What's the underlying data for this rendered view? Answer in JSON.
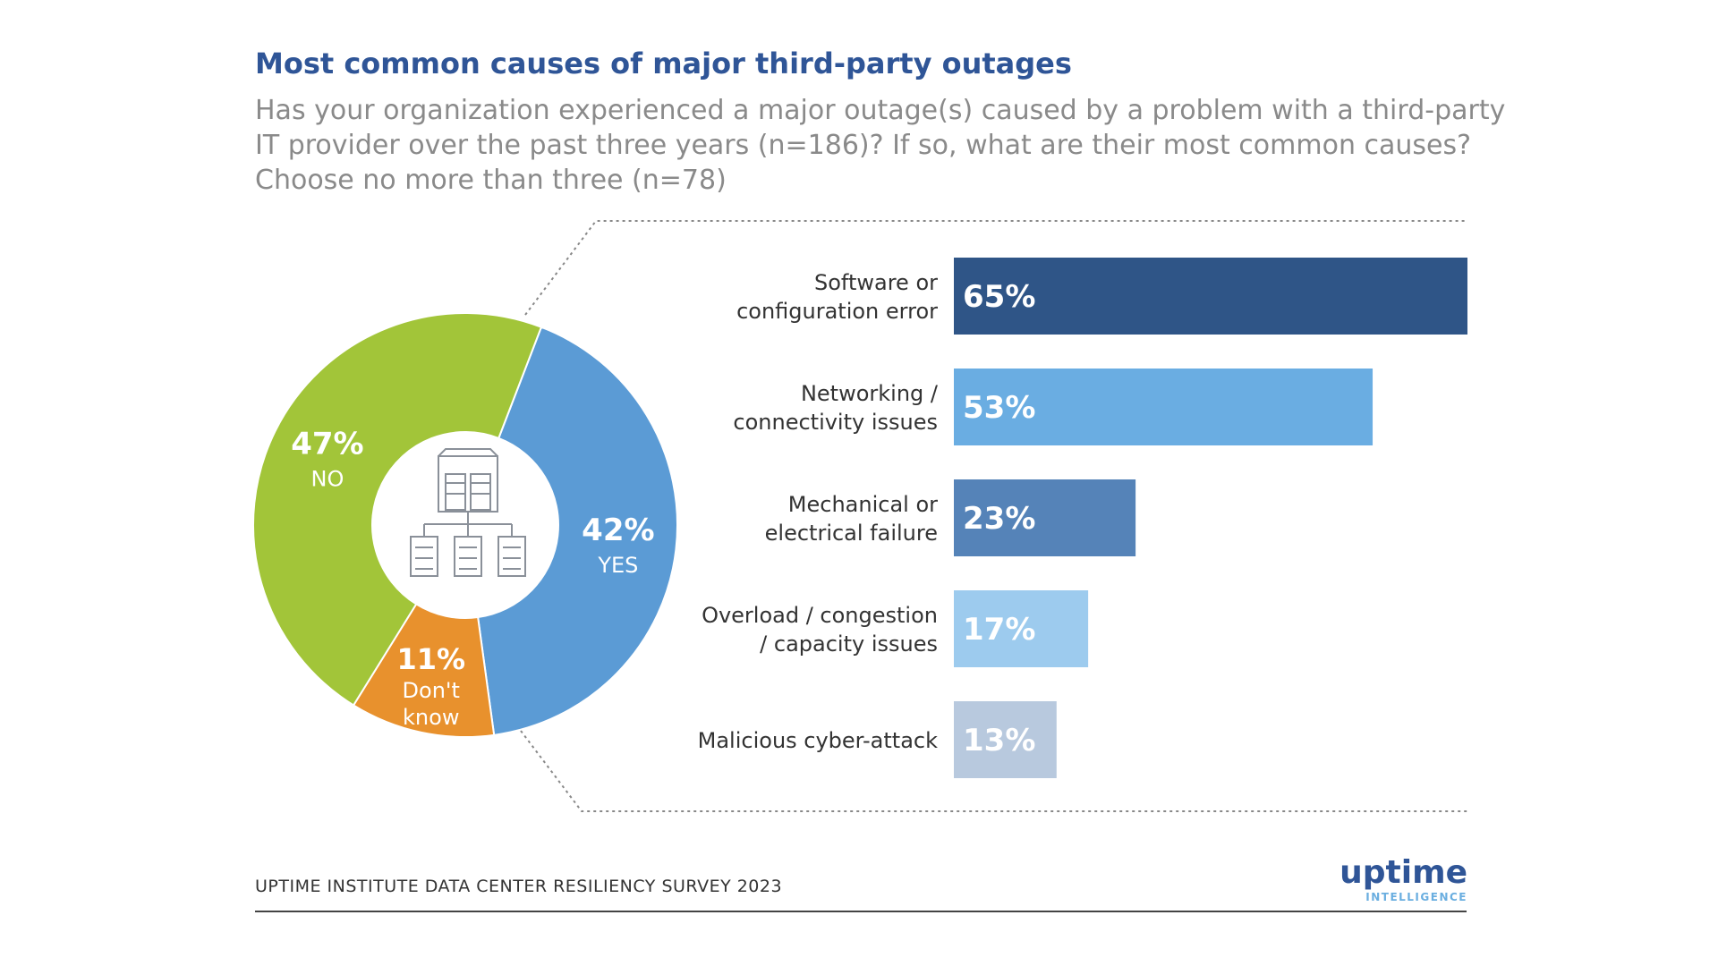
{
  "chart_data": {
    "title": "Most common causes of major third-party outages",
    "subtitle_lines": [
      "Has your organization experienced a major outage(s) caused by a problem with a third-party",
      "IT provider over the past three years (n=186)? If so, what are their most common causes?",
      "Choose no more than three (n=78)"
    ],
    "charts": [
      {
        "type": "pie",
        "name": "donut",
        "slices": [
          {
            "value": 42,
            "pct_label": "42%",
            "label_lines": [
              "YES"
            ],
            "color": "#5b9bd5"
          },
          {
            "value": 11,
            "pct_label": "11%",
            "label_lines": [
              "Don't",
              "know"
            ],
            "color": "#e8912d"
          },
          {
            "value": 47,
            "pct_label": "47%",
            "label_lines": [
              "NO"
            ],
            "color": "#a2c539"
          }
        ],
        "center_icon": "server-network-icon"
      },
      {
        "type": "bar",
        "orientation": "horizontal",
        "xlim": [
          0,
          65
        ],
        "bars": [
          {
            "label_lines": [
              "Software or",
              "configuration error"
            ],
            "value": 65,
            "value_label": "65%",
            "color": "#2f5587"
          },
          {
            "label_lines": [
              "Networking /",
              "connectivity issues"
            ],
            "value": 53,
            "value_label": "53%",
            "color": "#6aade2"
          },
          {
            "label_lines": [
              "Mechanical or",
              "electrical failure"
            ],
            "value": 23,
            "value_label": "23%",
            "color": "#5583b8"
          },
          {
            "label_lines": [
              "Overload / congestion",
              "/ capacity issues"
            ],
            "value": 17,
            "value_label": "17%",
            "color": "#9dcbee"
          },
          {
            "label_lines": [
              "Malicious cyber-attack"
            ],
            "value": 13,
            "value_label": "13%",
            "color": "#b8c9de"
          }
        ]
      }
    ]
  },
  "footer": {
    "source": "UPTIME INSTITUTE DATA CENTER RESILIENCY SURVEY 2023",
    "logo_main": "uptime",
    "logo_sub": "INTELLIGENCE"
  }
}
